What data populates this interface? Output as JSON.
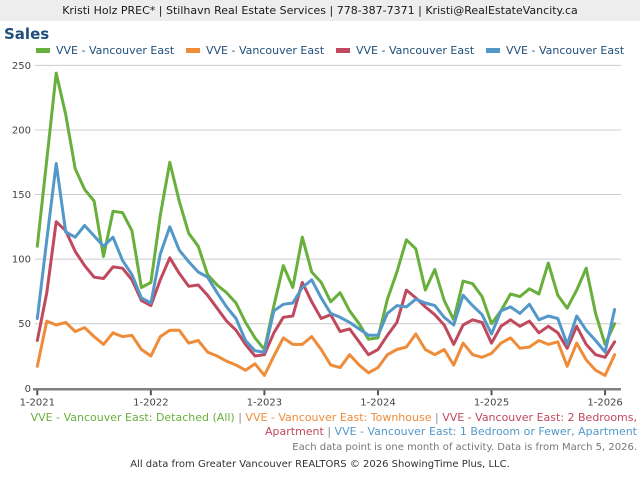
{
  "header": {
    "text": "Kristi Holz PREC* | Stilhavn Real Estate Services | 778-387-7371 | Kristi@RealEstateVancity.ca"
  },
  "title": "Sales",
  "colors": {
    "green": "#69af3c",
    "orange": "#ee8c3a",
    "crimson": "#c1495e",
    "blue": "#5398c9",
    "grid": "#cccccc",
    "axis": "#808080",
    "tick": "#555555",
    "axis_label": "#444444",
    "separator": "#888888",
    "navy_text": "#1f4e79"
  },
  "legend": {
    "items": [
      {
        "label": "VVE - Vancouver East",
        "color": "#69af3c"
      },
      {
        "label": "VVE - Vancouver East",
        "color": "#ee8c3a"
      },
      {
        "label": "VVE - Vancouver East",
        "color": "#c1495e"
      },
      {
        "label": "VVE - Vancouver East",
        "color": "#5398c9"
      }
    ]
  },
  "chart_data": {
    "type": "line",
    "x_start_month": "1-2021",
    "x_end_month": "2-2026",
    "x_tick_labels": [
      "1-2021",
      "1-2022",
      "1-2023",
      "1-2024",
      "1-2025",
      "1-2026"
    ],
    "y_ticks": [
      0,
      50,
      100,
      150,
      200,
      250
    ],
    "ylim": [
      0,
      250
    ],
    "grid": true,
    "legend_position": "top",
    "series": [
      {
        "name": "VVE - Vancouver East: Detached (All)",
        "color": "#69af3c",
        "values": [
          110,
          177,
          244,
          212,
          170,
          154,
          145,
          102,
          137,
          136,
          122,
          78,
          82,
          134,
          175,
          145,
          120,
          110,
          88,
          80,
          74,
          66,
          51,
          39,
          30,
          64,
          95,
          78,
          117,
          90,
          82,
          67,
          74,
          60,
          50,
          38,
          39,
          69,
          90,
          115,
          108,
          76,
          92,
          68,
          53,
          83,
          81,
          71,
          50,
          60,
          73,
          71,
          77,
          73,
          97,
          72,
          62,
          76,
          93,
          58,
          34,
          50
        ]
      },
      {
        "name": "VVE - Vancouver East: Townhouse",
        "color": "#ee8c3a",
        "values": [
          17,
          52,
          49,
          51,
          44,
          47,
          40,
          34,
          43,
          40,
          41,
          30,
          25,
          40,
          45,
          45,
          35,
          37,
          28,
          25,
          21,
          18,
          14,
          19,
          10,
          25,
          39,
          34,
          34,
          40,
          30,
          18,
          16,
          26,
          18,
          12,
          16,
          26,
          30,
          32,
          42,
          30,
          26,
          30,
          18,
          35,
          26,
          24,
          27,
          35,
          39,
          31,
          32,
          37,
          34,
          36,
          17,
          35,
          22,
          14,
          10,
          26
        ]
      },
      {
        "name": "VVE - Vancouver East: 2 Bedrooms, Apartment",
        "color": "#c1495e",
        "values": [
          37,
          74,
          129,
          122,
          106,
          95,
          86,
          85,
          94,
          93,
          84,
          68,
          64,
          84,
          101,
          89,
          79,
          80,
          72,
          62,
          52,
          45,
          34,
          25,
          26,
          43,
          55,
          56,
          82,
          67,
          54,
          57,
          44,
          46,
          36,
          26,
          30,
          41,
          51,
          76,
          70,
          63,
          57,
          49,
          34,
          49,
          53,
          51,
          35,
          48,
          53,
          48,
          52,
          43,
          48,
          43,
          31,
          48,
          34,
          26,
          24,
          36
        ]
      },
      {
        "name": "VVE - Vancouver East: 1 Bedroom or Fewer, Apartment",
        "color": "#5398c9",
        "values": [
          54,
          115,
          174,
          121,
          117,
          126,
          118,
          110,
          117,
          99,
          88,
          70,
          66,
          104,
          125,
          107,
          98,
          90,
          86,
          74,
          63,
          54,
          37,
          29,
          28,
          60,
          65,
          66,
          78,
          84,
          70,
          58,
          55,
          51,
          46,
          41,
          41,
          58,
          64,
          63,
          69,
          66,
          64,
          55,
          49,
          72,
          64,
          57,
          42,
          60,
          63,
          58,
          65,
          53,
          56,
          54,
          34,
          56,
          45,
          37,
          28,
          61
        ]
      }
    ]
  },
  "footer": {
    "series_note_segments": [
      {
        "text": "VVE - Vancouver East: Detached (All)",
        "color": "#69af3c"
      },
      {
        "text": " | ",
        "color": "#888888"
      },
      {
        "text": "VVE - Vancouver East: Townhouse",
        "color": "#ee8c3a"
      },
      {
        "text": " | ",
        "color": "#888888"
      },
      {
        "text": "VVE - Vancouver East: 2 Bedrooms, Apartment",
        "color": "#c1495e"
      },
      {
        "text": " | ",
        "color": "#888888"
      },
      {
        "text": "VVE - Vancouver East: 1 Bedroom or Fewer, Apartment",
        "color": "#5398c9"
      }
    ],
    "data_note": "Each data point is one month of activity. Data is from March 5, 2026.",
    "attribution": "All data from Greater Vancouver REALTORS © 2026 ShowingTime Plus, LLC."
  }
}
